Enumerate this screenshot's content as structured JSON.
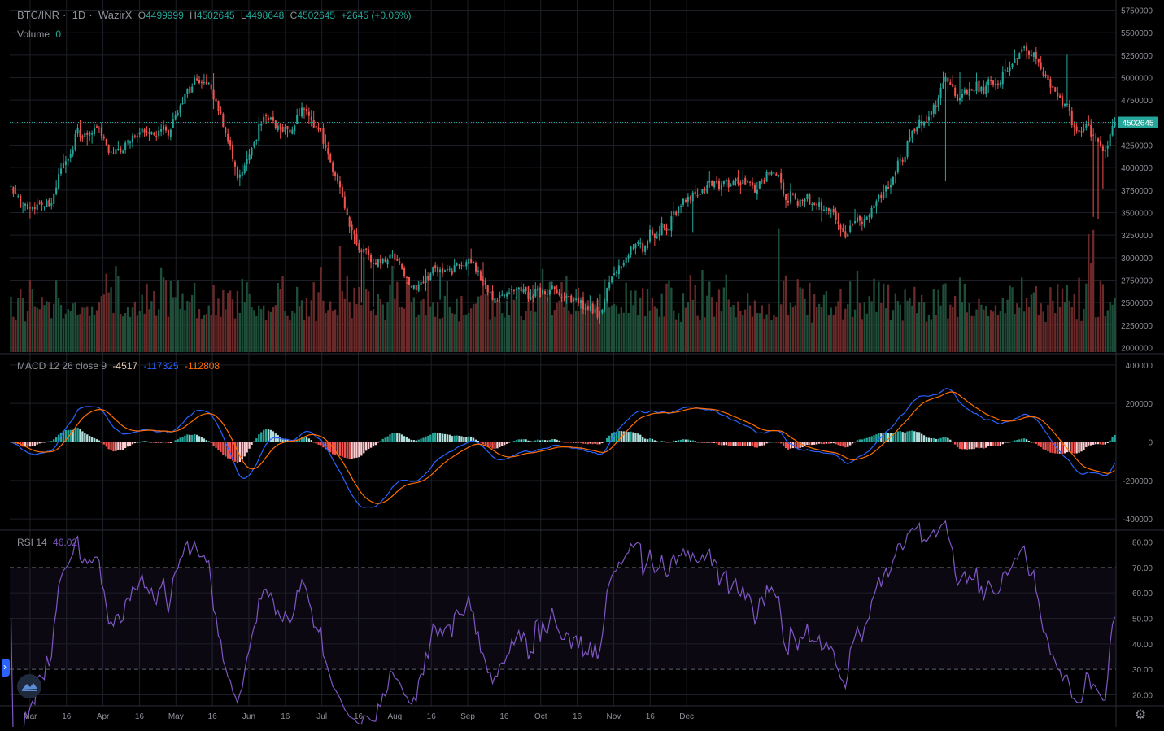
{
  "header": {
    "symbol": "BTC/INR",
    "interval": "1D",
    "exchange": "WazirX",
    "o_label": "O",
    "o_value": "4499999",
    "h_label": "H",
    "h_value": "4502645",
    "l_label": "L",
    "l_value": "4498648",
    "c_label": "C",
    "c_value": "4502645",
    "change": "+2645 (+0.06%)",
    "volume_label": "Volume",
    "volume_value": "0"
  },
  "macd_legend": {
    "label": "MACD 12 26 close 9",
    "hist": "-4517",
    "macd": "-117325",
    "signal": "-112808"
  },
  "rsi_legend": {
    "label": "RSI 14",
    "value": "46.02"
  },
  "price_label": "4502645",
  "colors": {
    "up": "#26a69a",
    "down": "#ef5350",
    "macd": "#2962ff",
    "signal": "#ff6d00",
    "rsi": "#7e57c2"
  },
  "icons": {
    "expand": "chevron-right-icon",
    "logo": "tradingview-logo-icon",
    "settings": "gear-icon"
  },
  "chart_data": [
    {
      "type": "candlestick",
      "name": "BTC/INR price",
      "x_ticks": [
        "Mar",
        "16",
        "Apr",
        "16",
        "May",
        "16",
        "Jun",
        "16",
        "Jul",
        "16",
        "Aug",
        "16",
        "Sep",
        "16",
        "Oct",
        "16",
        "Nov",
        "16",
        "Dec"
      ],
      "y_ticks": [
        "5750000",
        "5500000",
        "5250000",
        "5000000",
        "4750000",
        "4500000",
        "4250000",
        "4000000",
        "3750000",
        "3500000",
        "3250000",
        "3000000",
        "2750000",
        "2500000",
        "2250000",
        "2000000"
      ],
      "ylim": [
        1950000,
        5800000
      ],
      "last_price": 4502645,
      "close_anchors": [
        [
          0,
          3800000
        ],
        [
          8,
          3480000
        ],
        [
          16,
          3650000
        ],
        [
          28,
          4400000
        ],
        [
          38,
          4350000
        ],
        [
          46,
          4150000
        ],
        [
          54,
          4380000
        ],
        [
          66,
          4450000
        ],
        [
          74,
          4900000
        ],
        [
          81,
          4950000
        ],
        [
          88,
          4600000
        ],
        [
          95,
          3900000
        ],
        [
          104,
          4450000
        ],
        [
          114,
          4500000
        ],
        [
          124,
          4600000
        ],
        [
          130,
          4400000
        ],
        [
          138,
          3700000
        ],
        [
          146,
          3000000
        ],
        [
          154,
          2900000
        ],
        [
          162,
          3000000
        ],
        [
          170,
          2700000
        ],
        [
          178,
          2900000
        ],
        [
          184,
          2850000
        ],
        [
          192,
          2950000
        ],
        [
          198,
          2750000
        ],
        [
          202,
          2500000
        ],
        [
          210,
          2700000
        ],
        [
          218,
          2600000
        ],
        [
          226,
          2650000
        ],
        [
          234,
          2550000
        ],
        [
          240,
          2500000
        ],
        [
          246,
          2400000
        ],
        [
          252,
          2700000
        ],
        [
          258,
          3000000
        ],
        [
          266,
          3100000
        ],
        [
          274,
          3350000
        ],
        [
          282,
          3600000
        ],
        [
          290,
          3700000
        ],
        [
          298,
          3800000
        ],
        [
          306,
          3800000
        ],
        [
          314,
          3850000
        ],
        [
          320,
          3950000
        ],
        [
          326,
          3650000
        ],
        [
          334,
          3700000
        ],
        [
          342,
          3550000
        ],
        [
          350,
          3300000
        ],
        [
          356,
          3400000
        ],
        [
          364,
          3600000
        ],
        [
          370,
          3900000
        ],
        [
          378,
          4350000
        ],
        [
          386,
          4600000
        ],
        [
          392,
          5000000
        ],
        [
          398,
          4800000
        ],
        [
          404,
          4850000
        ],
        [
          412,
          4950000
        ],
        [
          418,
          5100000
        ],
        [
          424,
          5350000
        ],
        [
          430,
          5150000
        ],
        [
          436,
          4900000
        ],
        [
          442,
          4700000
        ],
        [
          448,
          4300000
        ],
        [
          452,
          4350000
        ],
        [
          458,
          4200000
        ],
        [
          463,
          4502645
        ]
      ]
    },
    {
      "type": "bar",
      "name": "Volume"
    },
    {
      "type": "line",
      "name": "MACD 12 26 close 9",
      "y_ticks": [
        "400000",
        "200000",
        "0",
        "-200000",
        "-400000"
      ],
      "ylim": [
        -450000,
        450000
      ]
    },
    {
      "type": "line",
      "name": "RSI 14",
      "y_ticks": [
        "80.00",
        "70.00",
        "60.00",
        "50.00",
        "40.00",
        "30.00",
        "20.00"
      ],
      "ylim": [
        16,
        84
      ],
      "band": [
        30,
        70
      ]
    }
  ]
}
